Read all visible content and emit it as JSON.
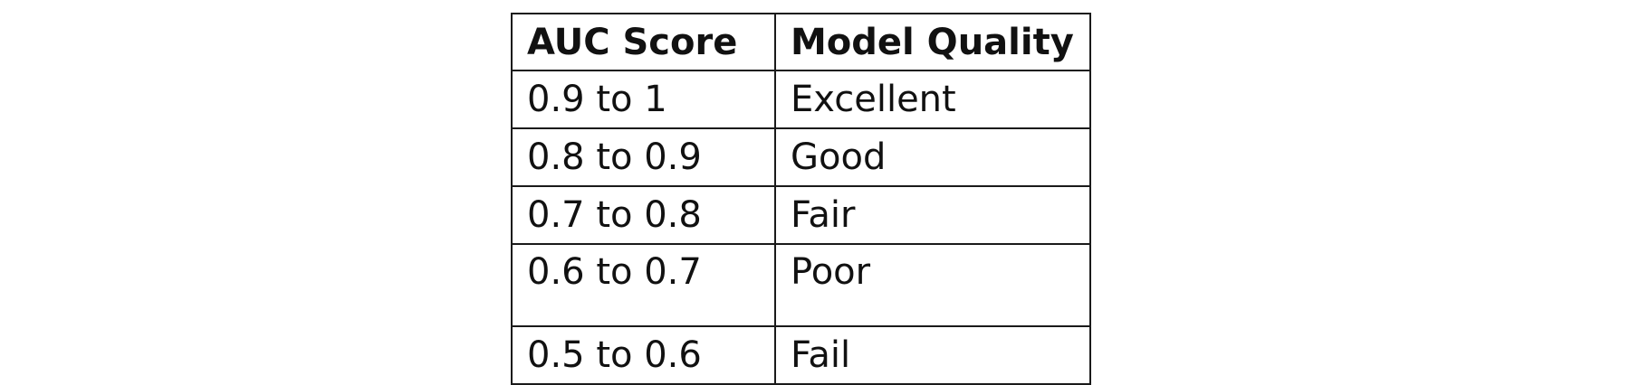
{
  "table": {
    "headers": [
      "AUC Score",
      "Model Quality"
    ],
    "rows": [
      [
        "0.9 to 1",
        "Excellent"
      ],
      [
        "0.8 to 0.9",
        "Good"
      ],
      [
        "0.7 to 0.8",
        "Fair"
      ],
      [
        "0.6 to 0.7",
        "Poor"
      ],
      [
        "0.5 to 0.6",
        "Fail"
      ]
    ]
  }
}
